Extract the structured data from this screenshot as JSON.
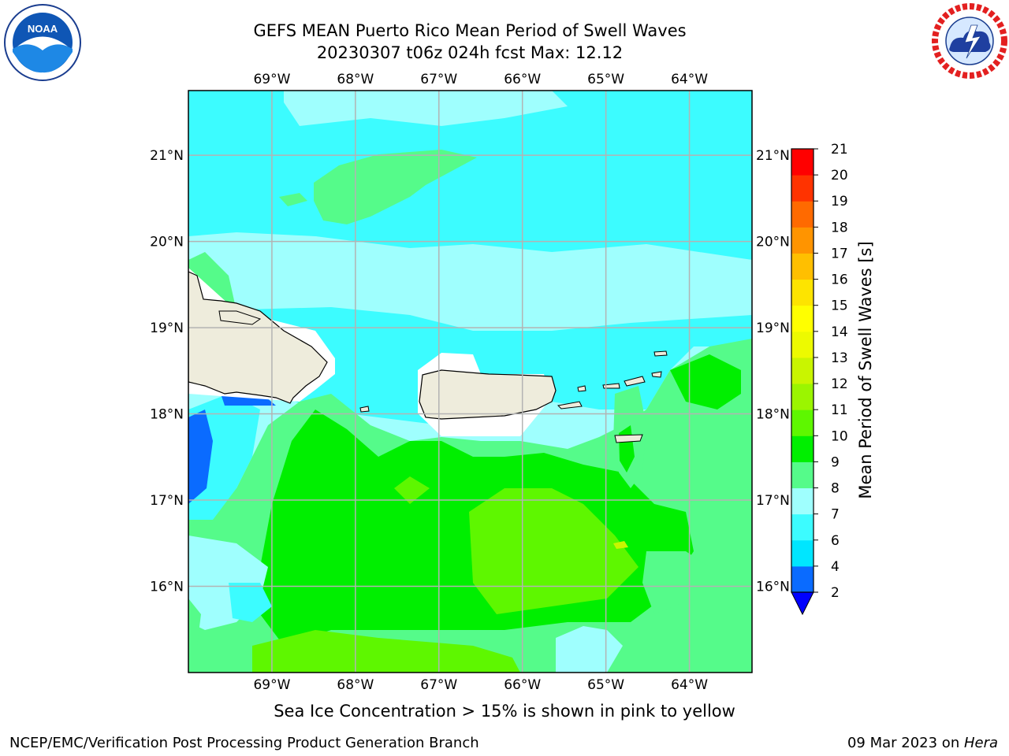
{
  "header": {
    "title_line1": "GEFS MEAN Puerto Rico Mean Period of Swell Waves",
    "title_line2": "20230307 t06z 024h fcst   Max: 12.12"
  },
  "logos": {
    "left": "NOAA",
    "left_ring_text": "NATIONAL OCEANIC AND ATMOSPHERIC ADMINISTRATION · U.S. DEPARTMENT OF COMMERCE",
    "right_ring_text": "NATIONAL WEATHER SERVICE"
  },
  "map": {
    "lon_labels": [
      "69°W",
      "68°W",
      "67°W",
      "66°W",
      "65°W",
      "64°W"
    ],
    "lat_labels": [
      "21°N",
      "20°N",
      "19°N",
      "18°N",
      "17°N",
      "16°N"
    ],
    "lon_range": [
      -70.0,
      -63.25
    ],
    "lat_range": [
      15.0,
      21.75
    ],
    "colors": {
      "ocean_base": "#9ffffe",
      "land": "#eeecdc",
      "coast": "#000000",
      "grid": "#b3b3b3"
    }
  },
  "colorbar": {
    "label": "Mean Period of Swell Waves [s]",
    "tick_labels": [
      "2",
      "4",
      "6",
      "7",
      "8",
      "9",
      "10",
      "11",
      "12",
      "13",
      "14",
      "15",
      "16",
      "17",
      "18",
      "19",
      "20",
      "21"
    ],
    "bin_colors": [
      "#0000ff",
      "#0a6bff",
      "#00e6ff",
      "#3cfcff",
      "#9ffffe",
      "#55fb8a",
      "#00ef00",
      "#5ef700",
      "#9bf500",
      "#c9f500",
      "#edfa00",
      "#ffff00",
      "#fde400",
      "#ffbf00",
      "#ff9400",
      "#ff6a00",
      "#ff3300",
      "#ff0000"
    ],
    "extend_below_color": "#0000ff"
  },
  "footer": {
    "subtitle": "Sea Ice Concentration > 15% is shown in pink to yellow",
    "left": "NCEP/EMC/Verification Post Processing Product Generation Branch",
    "right_date": "09 Mar 2023 on ",
    "right_machine": "Hera"
  }
}
